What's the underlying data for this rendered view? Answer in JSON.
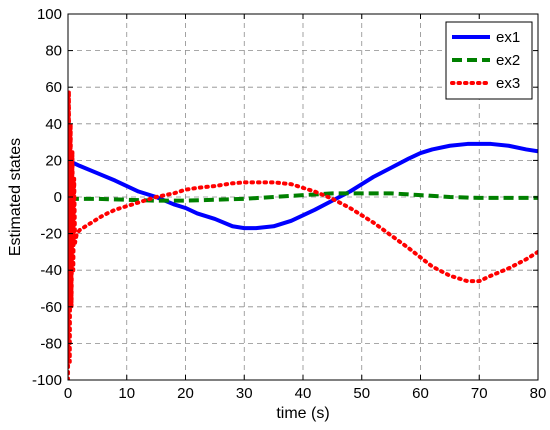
{
  "chart_data": {
    "type": "line",
    "title": "",
    "xlabel": "time (s)",
    "ylabel": "Estimated states",
    "xlim": [
      0,
      80
    ],
    "ylim": [
      -100,
      100
    ],
    "xticks": [
      0,
      10,
      20,
      30,
      40,
      50,
      60,
      70,
      80
    ],
    "yticks": [
      100,
      80,
      60,
      40,
      20,
      0,
      -20,
      -40,
      -60,
      -80,
      -100
    ],
    "grid": true,
    "legend_position": "top-right",
    "series": [
      {
        "name": "ex1",
        "color": "#0000ff",
        "style": "solid",
        "x": [
          0,
          2,
          5,
          8,
          10,
          12,
          15,
          18,
          20,
          22,
          25,
          28,
          30,
          32,
          35,
          38,
          40,
          42,
          45,
          48,
          50,
          52,
          55,
          58,
          60,
          62,
          65,
          68,
          70,
          72,
          75,
          78,
          80
        ],
        "y": [
          20,
          17,
          13,
          9,
          6,
          3,
          0,
          -4,
          -6,
          -9,
          -12,
          -16,
          -17,
          -17,
          -16,
          -13,
          -10,
          -7,
          -2,
          3,
          7,
          11,
          16,
          21,
          24,
          26,
          28,
          29,
          29,
          29,
          28,
          26,
          25
        ]
      },
      {
        "name": "ex2",
        "color": "#008000",
        "style": "dashed",
        "x": [
          0,
          0.3,
          0.6,
          1,
          2,
          5,
          10,
          15,
          20,
          25,
          30,
          35,
          40,
          45,
          50,
          55,
          60,
          65,
          70,
          75,
          80
        ],
        "y": [
          -30,
          5,
          -2,
          -1,
          -1,
          -1,
          -1.5,
          -2,
          -2,
          -1.5,
          -1,
          0,
          1,
          2,
          2,
          2,
          1,
          0,
          -0.5,
          -0.5,
          -0.5
        ]
      },
      {
        "name": "ex3",
        "color": "#ff0000",
        "style": "dotted",
        "x": [
          0,
          0.15,
          0.3,
          0.45,
          0.6,
          0.75,
          0.9,
          1.05,
          1.2,
          1.5,
          2,
          4,
          6,
          8,
          10,
          12,
          15,
          18,
          20,
          22,
          25,
          28,
          30,
          32,
          35,
          38,
          40,
          42,
          45,
          48,
          50,
          52,
          55,
          58,
          60,
          62,
          65,
          68,
          70,
          72,
          75,
          78,
          80
        ],
        "y": [
          -100,
          58,
          -90,
          40,
          -60,
          25,
          -40,
          10,
          -25,
          -20,
          -18,
          -14,
          -10,
          -7,
          -5,
          -3,
          0,
          2,
          4,
          5,
          6,
          7.5,
          8,
          8,
          8,
          7,
          5,
          3,
          -1,
          -6,
          -10,
          -14,
          -21,
          -28,
          -33,
          -38,
          -43,
          -46,
          -46,
          -43,
          -39,
          -34,
          -30
        ]
      }
    ]
  }
}
